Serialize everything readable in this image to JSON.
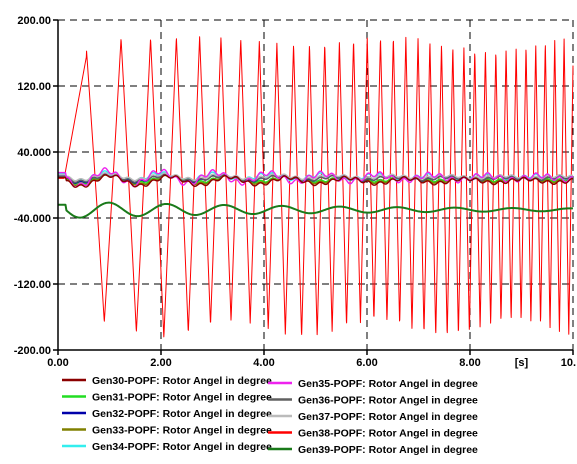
{
  "chart_data": {
    "type": "line",
    "title": "",
    "xlabel": "",
    "ylabel": "",
    "x_unit_label": "[s]",
    "xlim": [
      0,
      10
    ],
    "ylim": [
      -200,
      200
    ],
    "x_ticks": [
      0,
      2,
      4,
      6,
      8,
      10
    ],
    "x_tick_labels": [
      "0.00",
      "2.00",
      "4.00",
      "6.00",
      "8.00",
      "10."
    ],
    "y_ticks": [
      200,
      120,
      40,
      -40,
      -120,
      -200
    ],
    "y_tick_labels": [
      "200.00",
      "120.00",
      "40.000",
      "-40.000",
      "-120.00",
      "-200.00"
    ],
    "grid": true,
    "legend_placement": "bottom",
    "series": [
      {
        "name": "Gen30-POPF: Rotor Angel in degree",
        "color": "#8b0000",
        "kind": "swing",
        "base": 5,
        "amp": 7,
        "period": 1.15,
        "decay": 0.12,
        "ripple": 2
      },
      {
        "name": "Gen31-POPF: Rotor Angel in degree",
        "color": "#22dd22",
        "kind": "swing",
        "base": 7,
        "amp": 5,
        "period": 1.15,
        "decay": 0.15,
        "ripple": 1.5
      },
      {
        "name": "Gen32-POPF: Rotor Angel in degree",
        "color": "#0000aa",
        "kind": "swing",
        "base": 8,
        "amp": 5,
        "period": 1.1,
        "decay": 0.15,
        "ripple": 1.5
      },
      {
        "name": "Gen33-POPF: Rotor Angel in degree",
        "color": "#808000",
        "kind": "swing",
        "base": 6,
        "amp": 6,
        "period": 1.15,
        "decay": 0.13,
        "ripple": 1.5
      },
      {
        "name": "Gen34-POPF: Rotor Angel in degree",
        "color": "#33eeee",
        "kind": "swing",
        "base": 10,
        "amp": 6,
        "period": 1.05,
        "decay": 0.16,
        "ripple": 2
      },
      {
        "name": "Gen35-POPF: Rotor Angel in degree",
        "color": "#ee22ee",
        "kind": "swing",
        "base": 9,
        "amp": 10,
        "period": 1.05,
        "decay": 0.14,
        "ripple": 3
      },
      {
        "name": "Gen36-POPF: Rotor Angel in degree",
        "color": "#606060",
        "kind": "swing",
        "base": 8,
        "amp": 4,
        "period": 1.1,
        "decay": 0.15,
        "ripple": 1.5
      },
      {
        "name": "Gen37-POPF: Rotor Angel in degree",
        "color": "#bbbbbb",
        "kind": "swing",
        "base": 10,
        "amp": 4,
        "period": 1.1,
        "decay": 0.15,
        "ripple": 1.5
      },
      {
        "name": "Gen38-POPF: Rotor Angel in degree",
        "color": "#ff0000",
        "kind": "slip",
        "freq_start": 1.1,
        "freq_end": 5.5,
        "amp_max": 180,
        "amp_min": -175
      },
      {
        "name": "Gen39-POPF: Rotor Angel in degree",
        "color": "#1a7a1a",
        "kind": "swing",
        "base": -30,
        "amp": 10,
        "period": 1.12,
        "decay": 0.18,
        "ripple": 0
      }
    ]
  }
}
